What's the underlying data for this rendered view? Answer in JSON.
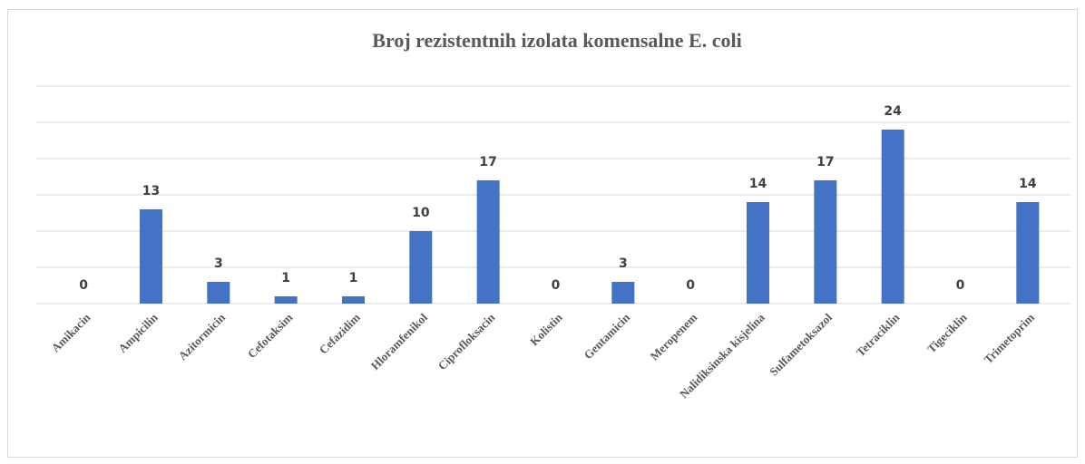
{
  "chart_data": {
    "type": "bar",
    "title": "Broj rezistentnih izolata komensalne E. coli",
    "categories": [
      "Amikacin",
      "Ampicilin",
      "Azitormicin",
      "Cefotaksim",
      "Cefazidim",
      "Hloramfenikol",
      "Ciprofloksacin",
      "Kolistin",
      "Gentamicin",
      "Meropenem",
      "Nalidiksinska kisjelina",
      "Sulfametoksazol",
      "Tetraciklin",
      "Tigeciklin",
      "Trimetoprim"
    ],
    "values": [
      0,
      13,
      3,
      1,
      1,
      10,
      17,
      0,
      3,
      0,
      14,
      17,
      24,
      0,
      14
    ],
    "color": "#4472c4",
    "ylim": [
      0,
      30
    ],
    "yticks": [
      0,
      5,
      10,
      15,
      20,
      25,
      30
    ],
    "grid": true
  }
}
